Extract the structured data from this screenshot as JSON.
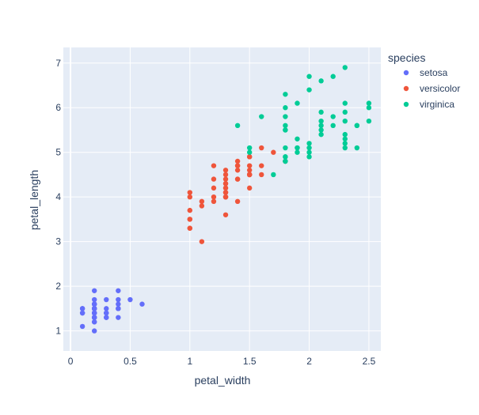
{
  "chart_data": {
    "type": "scatter",
    "title": "",
    "xlabel": "petal_width",
    "ylabel": "petal_length",
    "xlim": [
      -0.06,
      2.6
    ],
    "ylim": [
      0.55,
      7.35
    ],
    "x_ticks": [
      "0",
      "0.5",
      "1",
      "1.5",
      "2",
      "2.5"
    ],
    "y_ticks": [
      "1",
      "2",
      "3",
      "4",
      "5",
      "6",
      "7"
    ],
    "grid": true,
    "legend": {
      "title": "species",
      "placement": "top-right"
    },
    "colors": {
      "plot_bg": "#e5ecf6",
      "grid": "#ffffff",
      "text": "#2a3f5f"
    },
    "series": [
      {
        "name": "setosa",
        "color": "#636efa",
        "points": [
          [
            0.2,
            1.4
          ],
          [
            0.2,
            1.4
          ],
          [
            0.2,
            1.3
          ],
          [
            0.2,
            1.5
          ],
          [
            0.2,
            1.4
          ],
          [
            0.4,
            1.7
          ],
          [
            0.3,
            1.4
          ],
          [
            0.2,
            1.5
          ],
          [
            0.2,
            1.4
          ],
          [
            0.1,
            1.5
          ],
          [
            0.2,
            1.5
          ],
          [
            0.2,
            1.6
          ],
          [
            0.1,
            1.4
          ],
          [
            0.1,
            1.1
          ],
          [
            0.2,
            1.2
          ],
          [
            0.4,
            1.5
          ],
          [
            0.4,
            1.3
          ],
          [
            0.3,
            1.4
          ],
          [
            0.3,
            1.7
          ],
          [
            0.3,
            1.5
          ],
          [
            0.2,
            1.7
          ],
          [
            0.4,
            1.5
          ],
          [
            0.2,
            1.0
          ],
          [
            0.5,
            1.7
          ],
          [
            0.2,
            1.9
          ],
          [
            0.2,
            1.6
          ],
          [
            0.4,
            1.6
          ],
          [
            0.2,
            1.5
          ],
          [
            0.2,
            1.4
          ],
          [
            0.2,
            1.6
          ],
          [
            0.2,
            1.6
          ],
          [
            0.4,
            1.5
          ],
          [
            0.1,
            1.5
          ],
          [
            0.2,
            1.4
          ],
          [
            0.2,
            1.5
          ],
          [
            0.2,
            1.2
          ],
          [
            0.2,
            1.3
          ],
          [
            0.1,
            1.4
          ],
          [
            0.2,
            1.3
          ],
          [
            0.2,
            1.5
          ],
          [
            0.3,
            1.3
          ],
          [
            0.3,
            1.3
          ],
          [
            0.2,
            1.3
          ],
          [
            0.6,
            1.6
          ],
          [
            0.4,
            1.9
          ],
          [
            0.3,
            1.4
          ],
          [
            0.2,
            1.6
          ],
          [
            0.2,
            1.4
          ],
          [
            0.2,
            1.5
          ],
          [
            0.2,
            1.4
          ]
        ]
      },
      {
        "name": "versicolor",
        "color": "#ef553b",
        "points": [
          [
            1.4,
            4.7
          ],
          [
            1.5,
            4.5
          ],
          [
            1.5,
            4.9
          ],
          [
            1.3,
            4.0
          ],
          [
            1.5,
            4.6
          ],
          [
            1.3,
            4.5
          ],
          [
            1.6,
            4.7
          ],
          [
            1.0,
            3.3
          ],
          [
            1.3,
            4.6
          ],
          [
            1.4,
            3.9
          ],
          [
            1.0,
            3.5
          ],
          [
            1.5,
            4.2
          ],
          [
            1.0,
            4.0
          ],
          [
            1.4,
            4.7
          ],
          [
            1.3,
            3.6
          ],
          [
            1.4,
            4.4
          ],
          [
            1.5,
            4.5
          ],
          [
            1.0,
            4.1
          ],
          [
            1.5,
            4.5
          ],
          [
            1.1,
            3.9
          ],
          [
            1.8,
            4.8
          ],
          [
            1.3,
            4.0
          ],
          [
            1.5,
            4.9
          ],
          [
            1.2,
            4.7
          ],
          [
            1.3,
            4.3
          ],
          [
            1.4,
            4.4
          ],
          [
            1.4,
            4.8
          ],
          [
            1.7,
            5.0
          ],
          [
            1.5,
            4.5
          ],
          [
            1.0,
            3.5
          ],
          [
            1.1,
            3.8
          ],
          [
            1.0,
            3.7
          ],
          [
            1.2,
            3.9
          ],
          [
            1.6,
            5.1
          ],
          [
            1.5,
            4.5
          ],
          [
            1.6,
            4.5
          ],
          [
            1.5,
            4.7
          ],
          [
            1.3,
            4.4
          ],
          [
            1.3,
            4.1
          ],
          [
            1.3,
            4.0
          ],
          [
            1.2,
            4.4
          ],
          [
            1.4,
            4.6
          ],
          [
            1.2,
            4.0
          ],
          [
            1.0,
            3.3
          ],
          [
            1.3,
            4.2
          ],
          [
            1.2,
            4.2
          ],
          [
            1.3,
            4.2
          ],
          [
            1.3,
            4.3
          ],
          [
            1.1,
            3.0
          ],
          [
            1.3,
            4.1
          ]
        ]
      },
      {
        "name": "virginica",
        "color": "#00cc96",
        "points": [
          [
            2.5,
            6.0
          ],
          [
            1.9,
            5.1
          ],
          [
            2.1,
            5.9
          ],
          [
            1.8,
            5.6
          ],
          [
            2.2,
            5.8
          ],
          [
            2.1,
            6.6
          ],
          [
            1.7,
            4.5
          ],
          [
            1.8,
            6.3
          ],
          [
            1.8,
            5.8
          ],
          [
            2.5,
            6.1
          ],
          [
            2.0,
            5.1
          ],
          [
            1.9,
            5.3
          ],
          [
            2.1,
            5.5
          ],
          [
            2.0,
            5.0
          ],
          [
            2.4,
            5.1
          ],
          [
            2.3,
            5.3
          ],
          [
            1.8,
            5.5
          ],
          [
            2.2,
            6.7
          ],
          [
            2.3,
            6.9
          ],
          [
            1.5,
            5.0
          ],
          [
            2.3,
            5.7
          ],
          [
            2.0,
            4.9
          ],
          [
            2.0,
            6.7
          ],
          [
            1.8,
            4.9
          ],
          [
            2.1,
            5.7
          ],
          [
            1.8,
            6.0
          ],
          [
            1.8,
            4.8
          ],
          [
            1.8,
            4.9
          ],
          [
            2.1,
            5.6
          ],
          [
            1.6,
            5.8
          ],
          [
            1.9,
            6.1
          ],
          [
            2.0,
            6.4
          ],
          [
            2.2,
            5.6
          ],
          [
            1.5,
            5.1
          ],
          [
            1.4,
            5.6
          ],
          [
            2.3,
            6.1
          ],
          [
            2.4,
            5.6
          ],
          [
            1.8,
            5.5
          ],
          [
            1.8,
            4.8
          ],
          [
            2.1,
            5.4
          ],
          [
            2.4,
            5.6
          ],
          [
            2.3,
            5.1
          ],
          [
            1.9,
            5.1
          ],
          [
            2.3,
            5.9
          ],
          [
            2.5,
            5.7
          ],
          [
            2.3,
            5.2
          ],
          [
            1.9,
            5.0
          ],
          [
            2.0,
            5.2
          ],
          [
            2.3,
            5.4
          ],
          [
            1.8,
            5.1
          ]
        ]
      }
    ]
  }
}
